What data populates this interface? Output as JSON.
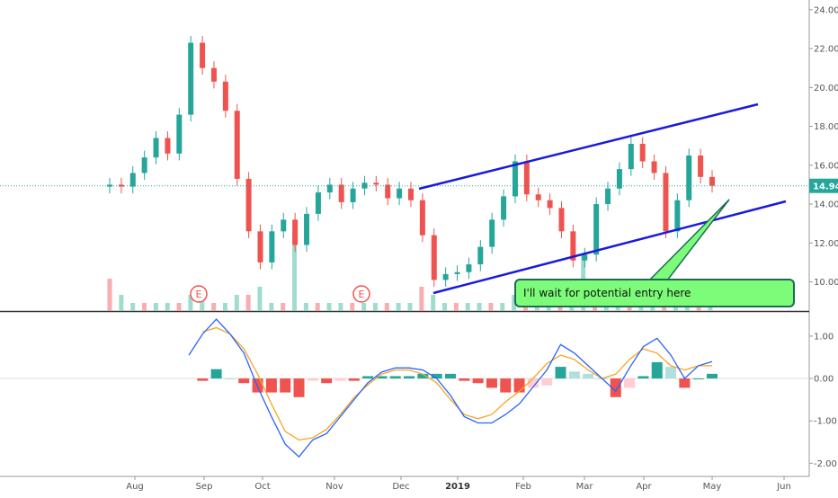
{
  "chart_data": [
    {
      "type": "candlestick",
      "panel": "price",
      "y_axis_ticks": [
        "24.00",
        "22.00",
        "20.00",
        "18.00",
        "16.00",
        "14.00",
        "12.00",
        "10.00"
      ],
      "ylim": [
        8.5,
        24.5
      ],
      "last_price_label": "14.94",
      "last_price": 14.94,
      "x_tick_labels": [
        "Aug",
        "Sep",
        "Oct",
        "Nov",
        "Dec",
        "2019",
        "Feb",
        "Mar",
        "Apr",
        "May",
        "Jun"
      ],
      "series": [
        {
          "name": "",
          "values": [
            15.0,
            14.9,
            15.6,
            16.4,
            17.4,
            16.6,
            18.6,
            22.3,
            21.0,
            20.3,
            18.8,
            15.3,
            12.6,
            11.0,
            12.6,
            13.2,
            11.9,
            13.5,
            14.6,
            15.0,
            14.1,
            14.8,
            15.1,
            15.0,
            14.3,
            14.8,
            14.2,
            12.4,
            10.1,
            10.4,
            10.5,
            10.9,
            11.8,
            13.2,
            14.4,
            16.2,
            14.5,
            14.2,
            13.8,
            12.6,
            11.1,
            11.4,
            14.0,
            14.8,
            15.8,
            17.1,
            16.2,
            15.6,
            12.6,
            14.2,
            16.5,
            15.4,
            14.94
          ]
        }
      ],
      "volume": [
        {
          "label": "",
          "values": [
            0.4,
            0.2,
            0.1,
            0.1,
            0.1,
            0.1,
            0.1,
            0.2,
            0.2,
            0.1,
            0.1,
            0.2,
            0.2,
            0.3,
            0.1,
            0.1,
            1.0,
            0.1,
            0.1,
            0.1,
            0.1,
            0.1,
            0.1,
            0.1,
            0.1,
            0.1,
            0.1,
            0.3,
            0.2,
            0.1,
            0.1,
            0.1,
            0.1,
            0.1,
            0.1,
            0.2,
            0.1,
            0.1,
            0.1,
            0.1,
            0.2,
            0.7,
            0.2,
            0.1,
            0.1,
            0.1,
            0.1,
            0.1,
            0.2,
            0.1,
            0.1,
            0.1,
            0.1
          ]
        }
      ],
      "earnings_markers": [
        "E",
        "E",
        "E"
      ],
      "annotations": {
        "note_text": "I'll wait for potential entry here"
      }
    },
    {
      "type": "macd",
      "panel": "indicator",
      "y_axis_ticks": [
        "1.00",
        "0.00",
        "-1.00",
        "-2.00"
      ],
      "ylim": [
        -2.1,
        1.55
      ],
      "series": [
        {
          "name": "",
          "color": "#2962ff",
          "values": [
            0.55,
            1.05,
            1.4,
            1.05,
            0.6,
            -0.2,
            -0.9,
            -1.55,
            -1.85,
            -1.45,
            -1.3,
            -0.9,
            -0.5,
            -0.1,
            0.15,
            0.25,
            0.25,
            0.2,
            0.0,
            -0.4,
            -0.9,
            -1.05,
            -1.05,
            -0.85,
            -0.6,
            -0.2,
            0.2,
            0.8,
            0.6,
            0.3,
            0.0,
            -0.3,
            0.25,
            0.75,
            0.95,
            0.55,
            0.0,
            0.3,
            0.4
          ]
        },
        {
          "name": "",
          "color": "#f5a623",
          "values": [
            null,
            1.1,
            1.2,
            1.05,
            0.7,
            0.1,
            -0.6,
            -1.25,
            -1.45,
            -1.4,
            -1.2,
            -0.85,
            -0.45,
            -0.15,
            0.1,
            0.2,
            0.2,
            0.1,
            -0.1,
            -0.5,
            -0.85,
            -0.95,
            -0.85,
            -0.55,
            -0.3,
            0.0,
            0.35,
            0.55,
            0.45,
            0.2,
            0.0,
            0.1,
            0.45,
            0.7,
            0.6,
            0.3,
            0.2,
            0.3,
            0.3
          ]
        }
      ]
    }
  ]
}
